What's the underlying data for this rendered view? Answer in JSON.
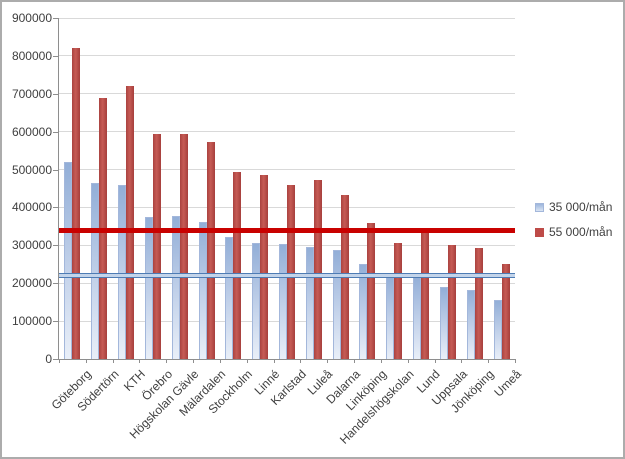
{
  "chart_data": {
    "type": "bar",
    "title": "",
    "categories": [
      "Göteborg",
      "Södertörn",
      "KTH",
      "Örebro",
      "Högskolan Gävle",
      "Mälardalen",
      "Stockholm",
      "Linné",
      "Karlstad",
      "Luleå",
      "Dalarna",
      "Linköping",
      "Handelshögskolan",
      "Lund",
      "Uppsala",
      "Jönköping",
      "Umeå"
    ],
    "series": [
      {
        "name": "35 000/mån",
        "color": "#95B3D7",
        "values": [
          520000,
          464000,
          458000,
          376000,
          377000,
          362000,
          322000,
          306000,
          303000,
          296000,
          288000,
          252000,
          221000,
          219000,
          189000,
          183000,
          157000
        ]
      },
      {
        "name": "55 000/mån",
        "color": "#BE4B48",
        "values": [
          820000,
          688000,
          721000,
          595000,
          593000,
          572000,
          494000,
          485000,
          459000,
          472000,
          432000,
          360000,
          305000,
          347000,
          302000,
          292000,
          252000
        ]
      }
    ],
    "reference_lines": [
      {
        "series": "55 000/mån",
        "value": 340000,
        "color": "#C90100",
        "style": "thick"
      },
      {
        "series": "35 000/mån",
        "value": 221000,
        "color": "#4E7CB4",
        "style": "double-thin"
      }
    ],
    "y_axis": {
      "min": 0,
      "max": 900000,
      "step": 100000,
      "tick_labels": [
        "0",
        "100000",
        "200000",
        "300000",
        "400000",
        "500000",
        "600000",
        "700000",
        "800000",
        "900000"
      ]
    },
    "x_axis": {
      "label_rotation_deg": -45
    },
    "legend": {
      "position": "right"
    },
    "grid": true
  },
  "colors": {
    "gridline": "#D9D9D9",
    "axis": "#8E8E8E",
    "text": "#3F3F3F",
    "chart_border": "#ACACAC",
    "background": "#FFFFFF"
  }
}
